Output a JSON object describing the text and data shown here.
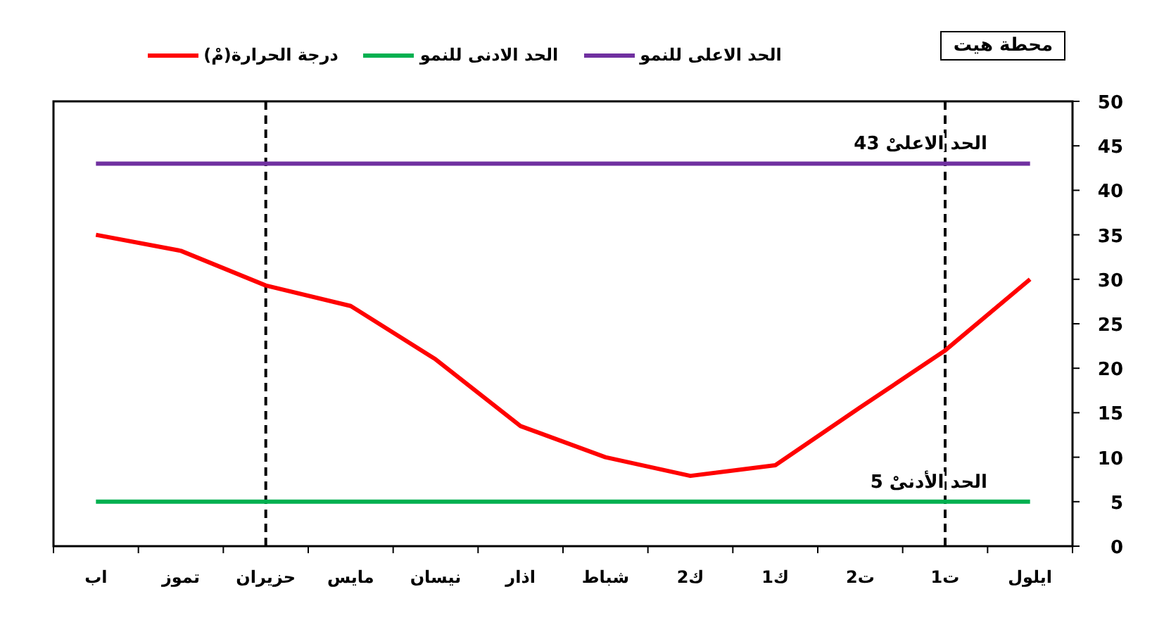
{
  "chart_data": {
    "type": "line",
    "title": "محطة هيت",
    "categories": [
      "اب",
      "تموز",
      "حزيران",
      "مايس",
      "نيسان",
      "اذار",
      "شباط",
      "ك2",
      "ك1",
      "ت2",
      "ت1",
      "ايلول"
    ],
    "series": [
      {
        "name": "درجة الحرارة(مْ)",
        "color": "#ff0000",
        "values": [
          35,
          33.2,
          29.3,
          27,
          21,
          13.5,
          10,
          7.9,
          9.1,
          15.6,
          22,
          30
        ]
      },
      {
        "name": "الحد الادنى للنمو",
        "color": "#00b050",
        "values": [
          5,
          5,
          5,
          5,
          5,
          5,
          5,
          5,
          5,
          5,
          5,
          5
        ]
      },
      {
        "name": "الحد الاعلى للنمو",
        "color": "#7030a0",
        "values": [
          43,
          43,
          43,
          43,
          43,
          43,
          43,
          43,
          43,
          43,
          43,
          43
        ]
      }
    ],
    "annotations": [
      {
        "text": "الحد الاعلىْ 43",
        "x": "ت1",
        "y": 43
      },
      {
        "text": "الحد الأدنىْ 5",
        "x": "ت1",
        "y": 5
      }
    ],
    "ref_lines": [
      {
        "axis": "x",
        "value": "حزيران",
        "color": "#000000",
        "line_style": "dashed"
      },
      {
        "axis": "x",
        "value": "ت1",
        "color": "#000000",
        "line_style": "dashed"
      }
    ],
    "ylim": [
      0,
      50
    ],
    "yticks": [
      0,
      5,
      10,
      15,
      20,
      25,
      30,
      35,
      40,
      45,
      50
    ],
    "grid": false,
    "legend": "top",
    "marker": "none",
    "line_style": "solid"
  }
}
